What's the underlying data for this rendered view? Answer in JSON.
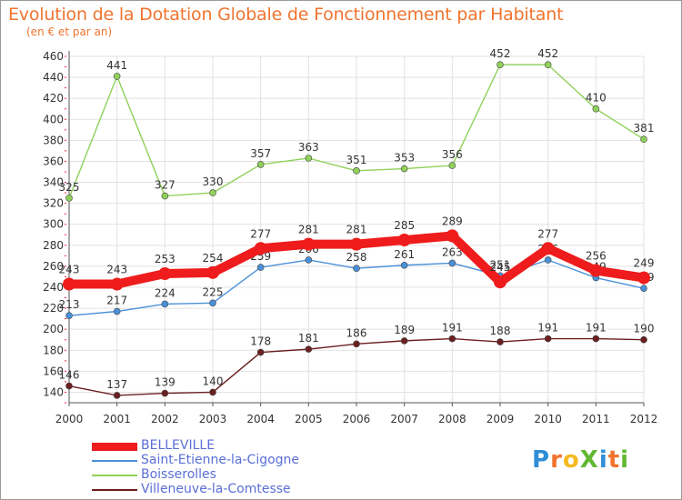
{
  "title": "Evolution de la Dotation Globale de Fonctionnement par Habitant",
  "subtitle": "(en € et par an)",
  "logo": {
    "text": "ProXiti",
    "letters": [
      "P",
      "r",
      "o",
      "X",
      "i",
      "t",
      "i"
    ],
    "colors": [
      "#2f8ed6",
      "#f0742f",
      "#f5b81f",
      "#62b832",
      "#2f8ed6",
      "#f0742f",
      "#62b832"
    ]
  },
  "chart_data": {
    "type": "line",
    "title": "Evolution de la Dotation Globale de Fonctionnement par Habitant",
    "subtitle": "(en € et par an)",
    "x": [
      "2000",
      "2001",
      "2002",
      "2003",
      "2004",
      "2005",
      "2006",
      "2007",
      "2008",
      "2009",
      "2010",
      "2011",
      "2012"
    ],
    "ylim": [
      130,
      460
    ],
    "yticks": [
      140,
      160,
      180,
      200,
      220,
      240,
      260,
      280,
      300,
      320,
      340,
      360,
      380,
      400,
      420,
      440,
      460
    ],
    "grid": true,
    "legend_placement": "bottom-left",
    "series": [
      {
        "name": "BELLEVILLE",
        "color": "#ee1c1c",
        "values": [
          243,
          243,
          253,
          254,
          277,
          281,
          281,
          285,
          289,
          245,
          277,
          256,
          249
        ],
        "labels": [
          "243",
          "243",
          "253",
          "254",
          "277",
          "281",
          "281",
          "285",
          "289",
          "245",
          "277",
          "256",
          "249"
        ]
      },
      {
        "name": "Saint-Etienne-la-Cigogne",
        "color": "#4a90d9",
        "values": [
          213,
          217,
          224,
          225,
          259,
          266,
          258,
          261,
          263,
          251,
          266,
          249,
          239
        ],
        "labels": [
          "213",
          "217",
          "224",
          "225",
          "259",
          "266",
          "258",
          "261",
          "263",
          "251",
          "266",
          "249",
          "239"
        ]
      },
      {
        "name": "Boisserolles",
        "color": "#8fd15a",
        "values": [
          325,
          441,
          327,
          330,
          357,
          363,
          351,
          353,
          356,
          452,
          452,
          410,
          381
        ],
        "labels": [
          "325",
          "441",
          "327",
          "330",
          "357",
          "363",
          "351",
          "353",
          "356",
          "452",
          "452",
          "410",
          "381"
        ]
      },
      {
        "name": "Villeneuve-la-Comtesse",
        "color": "#6b1f1f",
        "values": [
          146,
          137,
          139,
          140,
          178,
          181,
          186,
          189,
          191,
          188,
          191,
          191,
          190
        ],
        "labels": [
          "146",
          "137",
          "139",
          "140",
          "178",
          "181",
          "186",
          "189",
          "191",
          "188",
          "191",
          "191",
          "190"
        ]
      }
    ]
  }
}
